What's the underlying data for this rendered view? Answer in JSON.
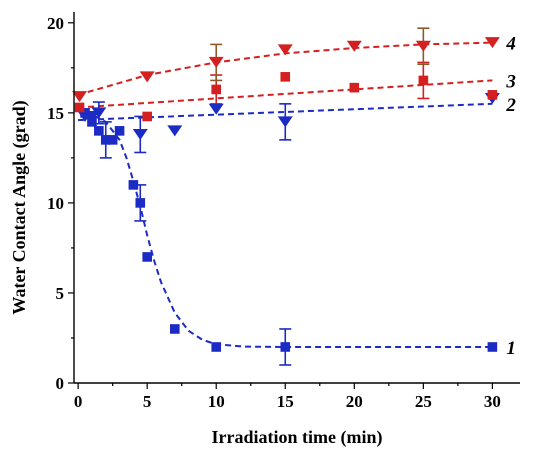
{
  "chart_data": {
    "type": "scatter",
    "xlabel": "Irradiation time (min)",
    "ylabel": "Water Contact Angle (grad)",
    "xlim": [
      -0.3,
      32
    ],
    "ylim": [
      0,
      20.6
    ],
    "xticks": [
      0,
      5,
      10,
      15,
      20,
      25,
      30
    ],
    "yticks": [
      0,
      5,
      10,
      15,
      20
    ],
    "grid": false,
    "series": [
      {
        "name": "1",
        "color": "#1c2bc4",
        "marker": "square",
        "points": [
          {
            "x": 0.5,
            "y": 15.0
          },
          {
            "x": 1.0,
            "y": 14.5
          },
          {
            "x": 1.5,
            "y": 14.0
          },
          {
            "x": 2.0,
            "y": 13.5,
            "err": 1.0
          },
          {
            "x": 2.5,
            "y": 13.5
          },
          {
            "x": 3.0,
            "y": 14.0
          },
          {
            "x": 4.0,
            "y": 11.0
          },
          {
            "x": 4.5,
            "y": 10.0,
            "err": 1.0
          },
          {
            "x": 5.0,
            "y": 7.0
          },
          {
            "x": 7.0,
            "y": 3.0
          },
          {
            "x": 10.0,
            "y": 2.0
          },
          {
            "x": 15.0,
            "y": 2.0,
            "err": 1.0
          },
          {
            "x": 30.0,
            "y": 2.0
          }
        ],
        "fit": [
          [
            0.5,
            15.0
          ],
          [
            1,
            14.9
          ],
          [
            2,
            14.5
          ],
          [
            3,
            13.5
          ],
          [
            3.5,
            12.5
          ],
          [
            4,
            11.2
          ],
          [
            4.5,
            9.8
          ],
          [
            5,
            8.2
          ],
          [
            5.5,
            6.8
          ],
          [
            6,
            5.6
          ],
          [
            7,
            3.9
          ],
          [
            8,
            2.9
          ],
          [
            9,
            2.4
          ],
          [
            10,
            2.15
          ],
          [
            12,
            2.02
          ],
          [
            15,
            2.0
          ],
          [
            30,
            2.0
          ]
        ]
      },
      {
        "name": "2",
        "color": "#1c2bc4",
        "marker": "triangle-down",
        "points": [
          {
            "x": 0.5,
            "y": 14.8
          },
          {
            "x": 1.0,
            "y": 14.8
          },
          {
            "x": 1.5,
            "y": 15.0,
            "err": 0.6
          },
          {
            "x": 4.5,
            "y": 13.8,
            "err": 1.0
          },
          {
            "x": 7.0,
            "y": 14.0
          },
          {
            "x": 10.0,
            "y": 15.2
          },
          {
            "x": 15.0,
            "y": 14.5,
            "err": 1.0
          },
          {
            "x": 30.0,
            "y": 15.8
          }
        ],
        "fit": [
          [
            0,
            14.6
          ],
          [
            30,
            15.5
          ]
        ]
      },
      {
        "name": "3",
        "color": "#d42020",
        "marker": "square",
        "points": [
          {
            "x": 0.1,
            "y": 15.3
          },
          {
            "x": 5.0,
            "y": 14.8
          },
          {
            "x": 10.0,
            "y": 16.3,
            "err": 0.8
          },
          {
            "x": 15.0,
            "y": 17.0
          },
          {
            "x": 20.0,
            "y": 16.4
          },
          {
            "x": 25.0,
            "y": 16.8,
            "err": 1.0
          },
          {
            "x": 30.0,
            "y": 16.0
          }
        ],
        "fit": [
          [
            0,
            15.3
          ],
          [
            10,
            15.8
          ],
          [
            20,
            16.3
          ],
          [
            30,
            16.8
          ]
        ]
      },
      {
        "name": "4",
        "color": "#d42020",
        "marker": "triangle-down",
        "points": [
          {
            "x": 0.1,
            "y": 15.9
          },
          {
            "x": 5.0,
            "y": 17.0
          },
          {
            "x": 10.0,
            "y": 17.8,
            "err": 1.0
          },
          {
            "x": 15.0,
            "y": 18.5
          },
          {
            "x": 20.0,
            "y": 18.7
          },
          {
            "x": 25.0,
            "y": 18.7,
            "err": 1.0
          },
          {
            "x": 30.0,
            "y": 18.9
          }
        ],
        "fit": [
          [
            0,
            16.0
          ],
          [
            5,
            17.1
          ],
          [
            10,
            17.8
          ],
          [
            15,
            18.3
          ],
          [
            20,
            18.6
          ],
          [
            25,
            18.8
          ],
          [
            30,
            18.9
          ]
        ]
      }
    ]
  }
}
